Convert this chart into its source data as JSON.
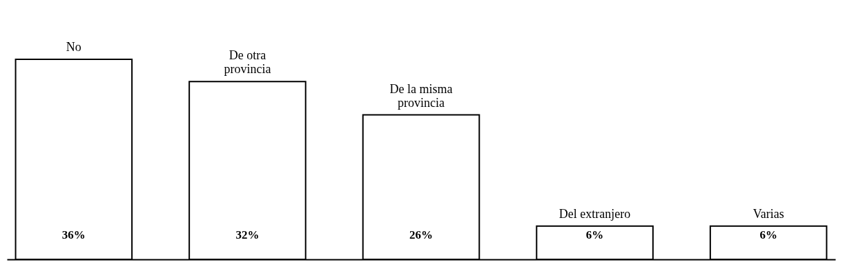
{
  "chart_data": {
    "type": "bar",
    "categories": [
      "No",
      "De otra provincia",
      "De la misma provincia",
      "Del extranjero",
      "Varias"
    ],
    "values": [
      36,
      32,
      26,
      6,
      6
    ],
    "value_labels": [
      "36%",
      "32%",
      "26%",
      "6%",
      "6%"
    ],
    "color": "#ffffff",
    "grid": false
  }
}
